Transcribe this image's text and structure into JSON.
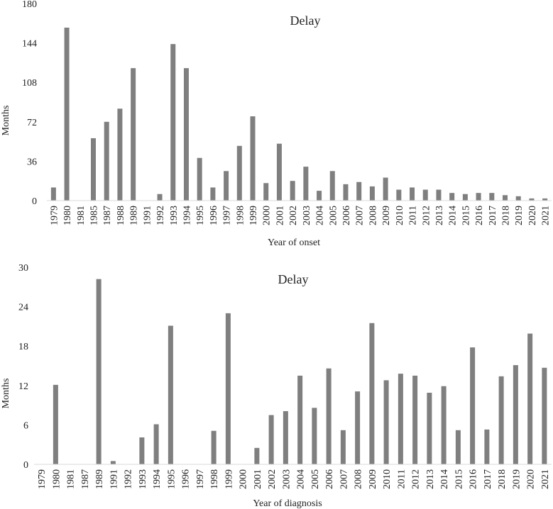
{
  "chart_data": [
    {
      "type": "bar",
      "title": "Delay",
      "xlabel": "Year of onset",
      "ylabel": "Months",
      "ylim": [
        0,
        180
      ],
      "yticks": [
        0,
        36,
        72,
        108,
        144,
        180
      ],
      "bar_color": "#7f7f7f",
      "grid": false,
      "legend": "none",
      "categories": [
        "1979",
        "1980",
        "1981",
        "1985",
        "1987",
        "1988",
        "1989",
        "1991",
        "1992",
        "1993",
        "1994",
        "1995",
        "1996",
        "1997",
        "1998",
        "1999",
        "2000",
        "2001",
        "2002",
        "2003",
        "2004",
        "2005",
        "2006",
        "2007",
        "2008",
        "2009",
        "2010",
        "2011",
        "2012",
        "2013",
        "2014",
        "2015",
        "2016",
        "2017",
        "2018",
        "2019",
        "2020",
        "2021"
      ],
      "values": [
        12,
        158,
        0,
        57,
        72,
        84,
        121,
        0,
        6,
        143,
        121,
        39,
        12,
        27,
        50,
        77,
        16,
        52,
        18,
        31,
        9,
        27,
        15,
        17,
        13,
        21,
        10,
        12,
        10,
        10,
        7,
        6,
        7,
        7,
        5,
        4,
        2,
        2
      ]
    },
    {
      "type": "bar",
      "title": "Delay",
      "xlabel": "Year of diagnosis",
      "ylabel": "Months",
      "ylim": [
        0,
        30
      ],
      "yticks": [
        0,
        6,
        12,
        18,
        24,
        30
      ],
      "bar_color": "#7f7f7f",
      "grid": false,
      "legend": "none",
      "categories": [
        "1979",
        "1980",
        "1981",
        "1987",
        "1989",
        "1991",
        "1992",
        "1993",
        "1994",
        "1995",
        "1996",
        "1997",
        "1998",
        "1999",
        "2000",
        "2001",
        "2002",
        "2003",
        "2004",
        "2005",
        "2006",
        "2007",
        "2008",
        "2009",
        "2010",
        "2011",
        "2012",
        "2013",
        "2014",
        "2015",
        "2016",
        "2017",
        "2018",
        "2019",
        "2020",
        "2021"
      ],
      "values": [
        0,
        12.1,
        0,
        0,
        28.2,
        0.5,
        0,
        4.1,
        6.1,
        21.1,
        0,
        0,
        5.1,
        23,
        0,
        2.5,
        7.5,
        8.1,
        13.5,
        8.6,
        14.6,
        5.2,
        11.1,
        21.5,
        12.8,
        13.8,
        13.5,
        10.9,
        11.9,
        5.2,
        17.8,
        5.3,
        13.4,
        15.1,
        19.9,
        14.7
      ]
    }
  ]
}
